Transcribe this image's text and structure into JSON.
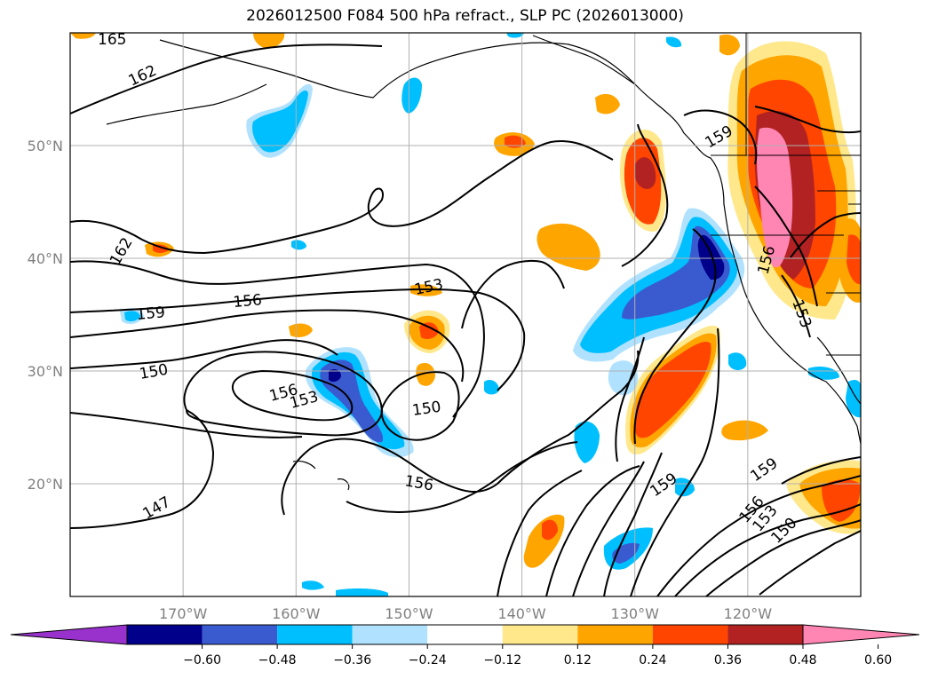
{
  "title": "2026012500 F084 500 hPa refract., SLP PC (2026013000)",
  "map": {
    "projection": "equirectangular",
    "lon_range": [
      -180,
      -110
    ],
    "lat_range": [
      10,
      60
    ],
    "gridlines": true,
    "colors": {
      "land_outline": "#000000",
      "grid": "#b0b0b0",
      "tick_label": "#808080"
    }
  },
  "lat_labels": [
    {
      "text": "50°N",
      "value": 50
    },
    {
      "text": "40°N",
      "value": 40
    },
    {
      "text": "30°N",
      "value": 30
    },
    {
      "text": "20°N",
      "value": 20
    }
  ],
  "lon_labels": [
    {
      "text": "170°W",
      "value": -170
    },
    {
      "text": "160°W",
      "value": -160
    },
    {
      "text": "150°W",
      "value": -150
    },
    {
      "text": "140°W",
      "value": -140
    },
    {
      "text": "130°W",
      "value": -130
    },
    {
      "text": "120°W",
      "value": -120
    }
  ],
  "contour_labels": [
    {
      "text": "165"
    },
    {
      "text": "162"
    },
    {
      "text": "162"
    },
    {
      "text": "159"
    },
    {
      "text": "156"
    },
    {
      "text": "153"
    },
    {
      "text": "150"
    },
    {
      "text": "156"
    },
    {
      "text": "153"
    },
    {
      "text": "150"
    },
    {
      "text": "156"
    },
    {
      "text": "147"
    },
    {
      "text": "159"
    },
    {
      "text": "156"
    },
    {
      "text": "153"
    },
    {
      "text": "159"
    },
    {
      "text": "159"
    },
    {
      "text": "156"
    },
    {
      "text": "153"
    },
    {
      "text": "150"
    }
  ],
  "colorbar": {
    "extend": "both",
    "bins": [
      {
        "color": "#9932cc"
      },
      {
        "color": "#00008b"
      },
      {
        "color": "#3a5bd0"
      },
      {
        "color": "#00bfff"
      },
      {
        "color": "#b0e2ff"
      },
      {
        "color": "#ffffff"
      },
      {
        "color": "#ffe88c"
      },
      {
        "color": "#ffa500"
      },
      {
        "color": "#ff4500"
      },
      {
        "color": "#b22222"
      },
      {
        "color": "#ff85b3"
      }
    ],
    "tick_labels": [
      "−0.60",
      "−0.48",
      "−0.36",
      "−0.24",
      "−0.12",
      "0.12",
      "0.24",
      "0.36",
      "0.48",
      "0.60"
    ]
  }
}
